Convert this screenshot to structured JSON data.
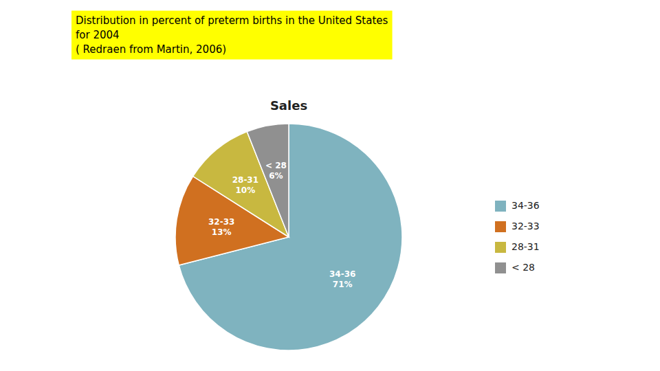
{
  "chart_data": {
    "type": "pie",
    "title": "Sales",
    "annotations": [
      "Distribution in percent of preterm births in the United States",
      "for 2004",
      "( Redraen from Martin, 2006)"
    ],
    "categories": [
      "34-36",
      "32-33",
      "28-31",
      "< 28"
    ],
    "values": [
      71,
      13,
      10,
      6
    ],
    "value_labels": [
      "71%",
      "13%",
      "10%",
      "6%"
    ],
    "colors": [
      "#7FB3BF",
      "#D07020",
      "#C8B840",
      "#909090"
    ],
    "data_labels": true,
    "legend": "right"
  }
}
